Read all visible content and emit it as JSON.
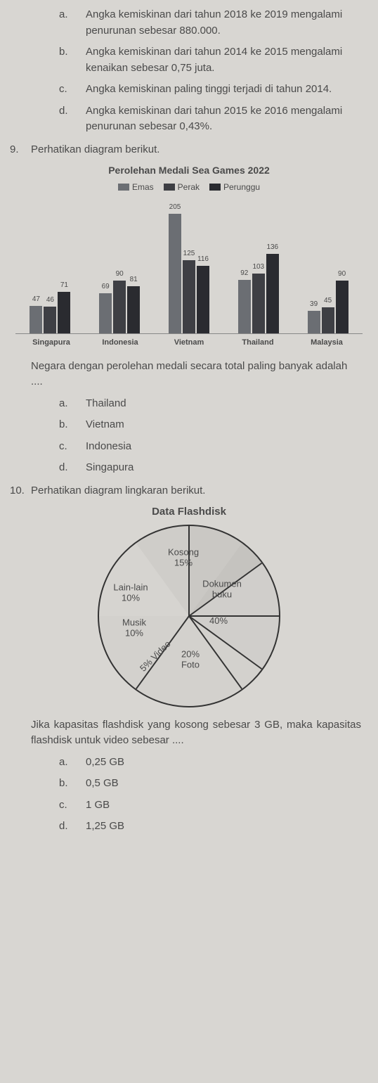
{
  "q_prev": {
    "a": "Angka kemiskinan dari tahun 2018 ke 2019 mengalami penurunan sebesar 880.000.",
    "b": "Angka kemiskinan dari tahun 2014 ke 2015 mengalami kenaikan sebesar 0,75 juta.",
    "c": "Angka kemiskinan paling tinggi terjadi di tahun 2014.",
    "d": "Angka kemiskinan dari tahun 2015 ke 2016 mengalami penurunan sebesar 0,43%."
  },
  "q9": {
    "num": "9.",
    "intro": "Perhatikan diagram berikut.",
    "chart": {
      "type": "bar",
      "title": "Perolehan Medali Sea Games 2022",
      "legend": [
        {
          "label": "Emas",
          "color": "#6b6e73"
        },
        {
          "label": "Perak",
          "color": "#3e3f44"
        },
        {
          "label": "Perunggu",
          "color": "#2a2b30"
        }
      ],
      "max": 205,
      "groups": [
        {
          "name": "Singapura",
          "bars": [
            {
              "v": 47,
              "c": "#6b6e73"
            },
            {
              "v": 46,
              "c": "#3e3f44"
            },
            {
              "v": 71,
              "c": "#2a2b30"
            }
          ]
        },
        {
          "name": "Indonesia",
          "bars": [
            {
              "v": 69,
              "c": "#6b6e73"
            },
            {
              "v": 90,
              "c": "#3e3f44"
            },
            {
              "v": 81,
              "c": "#2a2b30"
            }
          ]
        },
        {
          "name": "Vietnam",
          "bars": [
            {
              "v": 205,
              "c": "#6b6e73"
            },
            {
              "v": 125,
              "c": "#3e3f44"
            },
            {
              "v": 116,
              "c": "#2a2b30"
            }
          ]
        },
        {
          "name": "Thailand",
          "bars": [
            {
              "v": 92,
              "c": "#6b6e73"
            },
            {
              "v": 103,
              "c": "#3e3f44"
            },
            {
              "v": 136,
              "c": "#2a2b30"
            }
          ]
        },
        {
          "name": "Malaysia",
          "bars": [
            {
              "v": 39,
              "c": "#6b6e73"
            },
            {
              "v": 45,
              "c": "#3e3f44"
            },
            {
              "v": 90,
              "c": "#2a2b30"
            }
          ]
        }
      ],
      "background": "#d8d6d2"
    },
    "question": "Negara dengan perolehan medali secara total paling banyak adalah ....",
    "options": {
      "a": "Thailand",
      "b": "Vietnam",
      "c": "Indonesia",
      "d": "Singapura"
    }
  },
  "q10": {
    "num": "10.",
    "intro": "Perhatikan diagram lingkaran berikut.",
    "pie": {
      "type": "pie",
      "title": "Data Flashdisk",
      "slices": [
        {
          "label": "Kosong",
          "sub": "15%",
          "pct": 15,
          "color": "#d6d4d0"
        },
        {
          "label": "Lain-lain",
          "sub": "10%",
          "pct": 10,
          "color": "#cfcdc9"
        },
        {
          "label": "Musik",
          "sub": "10%",
          "pct": 10,
          "color": "#cac8c4"
        },
        {
          "label": "5% Video",
          "sub": "",
          "pct": 5,
          "color": "#c5c3bf"
        },
        {
          "label": "Foto",
          "sub": "20%",
          "pct": 20,
          "color": "#d0cecb"
        },
        {
          "label": "Dokumen buku",
          "sub": "40%",
          "pct": 40,
          "color": "#d3d1cd"
        }
      ],
      "border_color": "#333333",
      "background": "#d8d6d2"
    },
    "question": "Jika kapasitas flashdisk yang kosong sebesar 3 GB, maka kapasitas flashdisk untuk video sebesar ....",
    "options": {
      "a": "0,25 GB",
      "b": "0,5 GB",
      "c": "1 GB",
      "d": "1,25 GB"
    }
  },
  "letters": {
    "a": "a.",
    "b": "b.",
    "c": "c.",
    "d": "d."
  }
}
